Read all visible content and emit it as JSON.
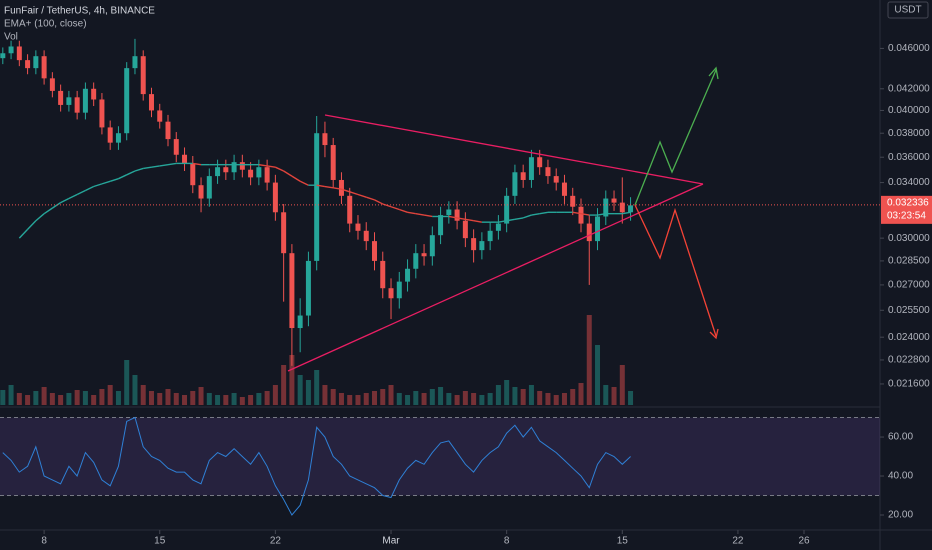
{
  "chart_data": {
    "type": "candlestick",
    "title": "FunFair / TetherUS, 4h, BINANCE",
    "ema_label": "EMA+ (100, close)",
    "volume_label": "Vol",
    "currency": "USDT",
    "log_scale": true,
    "up_color": "#26a69a",
    "down_color": "#ef5350",
    "ema_up_color": "#26a69a",
    "ema_down_color": "#e0443c",
    "rsi_color": "#2f80d6",
    "x": [
      5.5,
      6,
      6.5,
      7,
      7.5,
      8,
      8.5,
      9,
      9.5,
      10,
      10.5,
      11,
      11.5,
      12,
      12.5,
      13,
      13.5,
      14,
      14.5,
      15,
      15.5,
      16,
      16.5,
      17,
      17.5,
      18,
      18.5,
      19,
      19.5,
      20,
      20.5,
      21,
      21.5,
      22,
      22.5,
      23,
      23.5,
      24,
      24.5,
      25,
      25.5,
      26,
      26.5,
      27,
      27.5,
      28,
      28.5,
      29,
      29.5,
      30,
      30.5,
      31,
      31.5,
      32,
      32.5,
      33,
      33.5,
      34,
      34.5,
      35,
      35.5,
      36,
      36.5,
      37,
      37.5,
      38,
      38.5,
      39,
      39.5,
      40,
      40.5,
      41,
      41.5,
      42,
      42.5,
      43,
      43.5
    ],
    "open": [
      0.045,
      0.0455,
      0.0462,
      0.0448,
      0.044,
      0.0452,
      0.043,
      0.0418,
      0.0405,
      0.0412,
      0.0398,
      0.042,
      0.041,
      0.0385,
      0.0372,
      0.038,
      0.044,
      0.0452,
      0.0415,
      0.04,
      0.039,
      0.0375,
      0.0362,
      0.0355,
      0.0338,
      0.0328,
      0.0345,
      0.0352,
      0.0348,
      0.0356,
      0.035,
      0.0344,
      0.0352,
      0.034,
      0.0318,
      0.029,
      0.0245,
      0.0252,
      0.0285,
      0.038,
      0.037,
      0.0342,
      0.033,
      0.031,
      0.0305,
      0.0298,
      0.0285,
      0.0268,
      0.0262,
      0.0272,
      0.028,
      0.029,
      0.0288,
      0.0302,
      0.0316,
      0.032,
      0.0312,
      0.03,
      0.0292,
      0.0298,
      0.0305,
      0.031,
      0.033,
      0.0348,
      0.0342,
      0.036,
      0.0352,
      0.0345,
      0.034,
      0.033,
      0.0322,
      0.031,
      0.0298,
      0.0315,
      0.0328,
      0.0325,
      0.0318
    ],
    "high": [
      0.0461,
      0.0468,
      0.0468,
      0.0454,
      0.0458,
      0.0458,
      0.0436,
      0.0424,
      0.0418,
      0.0418,
      0.0426,
      0.0426,
      0.0416,
      0.0391,
      0.0386,
      0.0446,
      0.047,
      0.0458,
      0.0421,
      0.0406,
      0.0396,
      0.0381,
      0.0368,
      0.0361,
      0.0344,
      0.0351,
      0.0358,
      0.0358,
      0.0362,
      0.0362,
      0.0356,
      0.0358,
      0.0358,
      0.0346,
      0.0324,
      0.0296,
      0.0262,
      0.0291,
      0.0395,
      0.039,
      0.0376,
      0.0348,
      0.0336,
      0.0316,
      0.0311,
      0.0304,
      0.0291,
      0.0274,
      0.0278,
      0.0286,
      0.0296,
      0.0296,
      0.0308,
      0.0322,
      0.0326,
      0.0326,
      0.0318,
      0.0306,
      0.0304,
      0.0311,
      0.0316,
      0.0336,
      0.0354,
      0.0354,
      0.0366,
      0.0366,
      0.0358,
      0.0351,
      0.0346,
      0.0336,
      0.0328,
      0.0316,
      0.0321,
      0.0334,
      0.0334,
      0.0344,
      0.0329
    ],
    "low": [
      0.0444,
      0.0449,
      0.0442,
      0.0434,
      0.0434,
      0.0424,
      0.0412,
      0.0399,
      0.0399,
      0.0392,
      0.0392,
      0.0404,
      0.0379,
      0.0366,
      0.0366,
      0.0374,
      0.0434,
      0.0409,
      0.0394,
      0.0384,
      0.0369,
      0.0356,
      0.0349,
      0.0332,
      0.0318,
      0.0322,
      0.0339,
      0.0342,
      0.0342,
      0.0344,
      0.0338,
      0.0338,
      0.0334,
      0.0312,
      0.026,
      0.0225,
      0.0232,
      0.0246,
      0.0279,
      0.036,
      0.0336,
      0.0324,
      0.0304,
      0.0299,
      0.0292,
      0.0279,
      0.0262,
      0.025,
      0.0256,
      0.0266,
      0.0274,
      0.0282,
      0.0282,
      0.0296,
      0.031,
      0.0306,
      0.0294,
      0.0284,
      0.0286,
      0.0292,
      0.0299,
      0.0304,
      0.0324,
      0.0336,
      0.0336,
      0.0346,
      0.0339,
      0.0334,
      0.0324,
      0.0316,
      0.0304,
      0.027,
      0.0292,
      0.0309,
      0.0319,
      0.031,
      0.0312
    ],
    "close": [
      0.0455,
      0.0462,
      0.0448,
      0.044,
      0.0452,
      0.043,
      0.0418,
      0.0405,
      0.0412,
      0.0398,
      0.042,
      0.041,
      0.0385,
      0.0372,
      0.038,
      0.044,
      0.0452,
      0.0415,
      0.04,
      0.039,
      0.0375,
      0.0362,
      0.0355,
      0.0338,
      0.0328,
      0.0345,
      0.0352,
      0.0348,
      0.0356,
      0.035,
      0.0344,
      0.0352,
      0.034,
      0.0318,
      0.029,
      0.0245,
      0.0252,
      0.0285,
      0.038,
      0.037,
      0.0342,
      0.033,
      0.031,
      0.0305,
      0.0298,
      0.0285,
      0.0268,
      0.0262,
      0.0272,
      0.028,
      0.029,
      0.0288,
      0.0302,
      0.0316,
      0.032,
      0.0312,
      0.03,
      0.0292,
      0.0298,
      0.0305,
      0.031,
      0.033,
      0.0348,
      0.0342,
      0.036,
      0.0352,
      0.0345,
      0.034,
      0.033,
      0.0322,
      0.031,
      0.0298,
      0.0315,
      0.0328,
      0.0325,
      0.0318,
      0.0323
    ],
    "ema": [
      null,
      null,
      0.03,
      0.0306,
      0.0312,
      0.0317,
      0.0321,
      0.0325,
      0.0328,
      0.0331,
      0.0334,
      0.0337,
      0.0339,
      0.0341,
      0.0343,
      0.0346,
      0.0349,
      0.0351,
      0.0352,
      0.0353,
      0.0354,
      0.0355,
      0.0355,
      0.0355,
      0.0354,
      0.0354,
      0.0354,
      0.0354,
      0.0354,
      0.0354,
      0.0354,
      0.0354,
      0.0353,
      0.0352,
      0.0349,
      0.0345,
      0.0341,
      0.0338,
      0.0338,
      0.0337,
      0.0336,
      0.0335,
      0.0333,
      0.0331,
      0.0329,
      0.0327,
      0.0324,
      0.0322,
      0.032,
      0.0318,
      0.0317,
      0.0316,
      0.0315,
      0.0315,
      0.0315,
      0.0314,
      0.0313,
      0.0312,
      0.0311,
      0.0311,
      0.0311,
      0.0312,
      0.0313,
      0.0314,
      0.0316,
      0.0317,
      0.0318,
      0.0318,
      0.0318,
      0.0318,
      0.0317,
      0.0316,
      0.0316,
      0.0317,
      0.0317,
      0.0317,
      0.0318
    ],
    "volume": [
      15,
      20,
      12,
      10,
      14,
      18,
      12,
      10,
      12,
      15,
      14,
      10,
      16,
      20,
      14,
      45,
      30,
      20,
      14,
      12,
      16,
      12,
      10,
      14,
      18,
      12,
      10,
      10,
      12,
      8,
      10,
      12,
      14,
      20,
      40,
      50,
      30,
      25,
      35,
      20,
      16,
      12,
      10,
      10,
      12,
      14,
      16,
      20,
      12,
      10,
      14,
      12,
      16,
      18,
      12,
      10,
      14,
      12,
      10,
      12,
      20,
      25,
      18,
      16,
      20,
      14,
      12,
      10,
      12,
      16,
      22,
      90,
      60,
      20,
      18,
      40,
      14
    ],
    "rsi": [
      52,
      48,
      42,
      45,
      55,
      40,
      38,
      36,
      45,
      40,
      52,
      47,
      38,
      35,
      45,
      68,
      70,
      55,
      50,
      48,
      44,
      42,
      42,
      38,
      36,
      48,
      52,
      50,
      54,
      50,
      46,
      52,
      45,
      35,
      28,
      20,
      25,
      38,
      65,
      60,
      50,
      46,
      40,
      38,
      36,
      34,
      30,
      29,
      38,
      44,
      48,
      46,
      52,
      57,
      58,
      52,
      46,
      42,
      48,
      52,
      55,
      62,
      66,
      60,
      65,
      58,
      55,
      52,
      48,
      44,
      40,
      34,
      46,
      52,
      50,
      46,
      50
    ],
    "xlim": [
      5.33,
      58.6
    ],
    "xticks": [
      8,
      15,
      22,
      {
        "value": 29,
        "label": "Mar"
      },
      {
        "value": 36,
        "label": "8"
      },
      {
        "value": 43,
        "label": "15"
      },
      {
        "value": 50,
        "label": "22"
      },
      {
        "value": 54,
        "label": "26"
      }
    ],
    "ylim": [
      0.0206,
      0.0513
    ],
    "yticks": [
      {
        "value": 0.0216,
        "label": "0.021600"
      },
      {
        "value": 0.0228,
        "label": "0.022800"
      },
      {
        "value": 0.024,
        "label": "0.024000"
      },
      {
        "value": 0.0255,
        "label": "0.025500"
      },
      {
        "value": 0.027,
        "label": "0.027000"
      },
      {
        "value": 0.0285,
        "label": "0.028500"
      },
      {
        "value": 0.03,
        "label": "0.030000"
      },
      {
        "value": 0.034,
        "label": "0.034000"
      },
      {
        "value": 0.036,
        "label": "0.036000"
      },
      {
        "value": 0.038,
        "label": "0.038000"
      },
      {
        "value": 0.04,
        "label": "0.040000"
      },
      {
        "value": 0.042,
        "label": "0.042000"
      },
      {
        "value": 0.046,
        "label": "0.046000"
      }
    ],
    "volume_lim": [
      0,
      100
    ],
    "rsi_lim": [
      12.3,
      74.9
    ],
    "rsi_ticks": [
      {
        "value": 60,
        "label": "60.00"
      },
      {
        "value": 40,
        "label": "40.00"
      },
      {
        "value": 20,
        "label": "20.00"
      }
    ],
    "rsi_band": [
      30,
      70
    ],
    "last_price": {
      "value": 0.032336,
      "label": "0.032336"
    },
    "countdown": "03:23:54"
  }
}
